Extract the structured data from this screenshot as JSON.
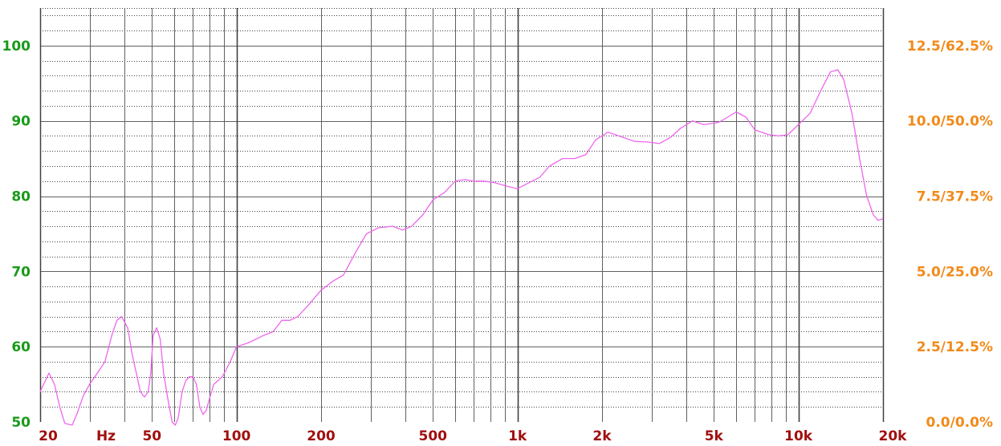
{
  "chart_data": {
    "type": "line",
    "x_scale": "log",
    "xlim": [
      20,
      20000
    ],
    "ylim": [
      50,
      105
    ],
    "grid": true,
    "x_tick_labels": [
      {
        "value": 20,
        "label": "20"
      },
      {
        "value": 50,
        "label": "50"
      },
      {
        "value": 100,
        "label": "100"
      },
      {
        "value": 200,
        "label": "200"
      },
      {
        "value": 500,
        "label": "500"
      },
      {
        "value": 1000,
        "label": "1k"
      },
      {
        "value": 2000,
        "label": "2k"
      },
      {
        "value": 5000,
        "label": "5k"
      },
      {
        "value": 10000,
        "label": "10k"
      },
      {
        "value": 20000,
        "label": "20k"
      }
    ],
    "x_unit_label": "Hz",
    "y_tick_labels_left": [
      {
        "value": 50,
        "label": "50"
      },
      {
        "value": 60,
        "label": "60"
      },
      {
        "value": 70,
        "label": "70"
      },
      {
        "value": 80,
        "label": "80"
      },
      {
        "value": 90,
        "label": "90"
      },
      {
        "value": 100,
        "label": "100"
      }
    ],
    "y_tick_labels_right": [
      {
        "value": 50,
        "label": "0.0/0.0%"
      },
      {
        "value": 60,
        "label": "2.5/12.5%"
      },
      {
        "value": 70,
        "label": "5.0/25.0%"
      },
      {
        "value": 80,
        "label": "7.5/37.5%"
      },
      {
        "value": 90,
        "label": "10.0/50.0%"
      },
      {
        "value": 100,
        "label": "12.5/62.5%"
      }
    ],
    "colors": {
      "line": "#ee66ee",
      "left_axis": "#1a9a1a",
      "right_axis": "#f28a1a",
      "x_axis": "#a01010",
      "grid_major": "#606060",
      "grid_minor": "#404040"
    },
    "series": [
      {
        "points": [
          [
            20,
            54
          ],
          [
            21.5,
            56.5
          ],
          [
            22.5,
            55
          ],
          [
            23.5,
            52
          ],
          [
            24.5,
            49.8
          ],
          [
            26,
            49.5
          ],
          [
            27,
            51
          ],
          [
            28.5,
            53.5
          ],
          [
            30,
            55
          ],
          [
            32,
            56.5
          ],
          [
            34,
            58
          ],
          [
            36,
            61.5
          ],
          [
            37.5,
            63.5
          ],
          [
            39,
            64
          ],
          [
            41,
            62.5
          ],
          [
            42.5,
            59
          ],
          [
            44,
            56.5
          ],
          [
            45.5,
            54
          ],
          [
            47,
            53.3
          ],
          [
            48.5,
            54
          ],
          [
            49.5,
            56.5
          ],
          [
            50.5,
            61.5
          ],
          [
            52,
            62.5
          ],
          [
            53.5,
            61
          ],
          [
            55,
            56.5
          ],
          [
            57,
            53
          ],
          [
            59,
            50
          ],
          [
            60.5,
            49.5
          ],
          [
            62,
            50.5
          ],
          [
            64,
            54
          ],
          [
            66,
            55.5
          ],
          [
            68,
            56
          ],
          [
            70,
            56
          ],
          [
            72,
            55
          ],
          [
            74,
            52
          ],
          [
            76,
            51
          ],
          [
            78,
            51.5
          ],
          [
            80,
            53
          ],
          [
            83,
            55
          ],
          [
            86,
            55.5
          ],
          [
            89,
            56
          ],
          [
            92,
            57
          ],
          [
            95,
            58
          ],
          [
            100,
            60
          ],
          [
            110,
            60.5
          ],
          [
            125,
            61.5
          ],
          [
            135,
            62
          ],
          [
            145,
            63.5
          ],
          [
            155,
            63.5
          ],
          [
            165,
            64
          ],
          [
            180,
            65.5
          ],
          [
            200,
            67.5
          ],
          [
            220,
            68.7
          ],
          [
            240,
            69.5
          ],
          [
            265,
            72.5
          ],
          [
            290,
            75
          ],
          [
            320,
            75.8
          ],
          [
            360,
            76
          ],
          [
            390,
            75.5
          ],
          [
            420,
            76
          ],
          [
            460,
            77.5
          ],
          [
            500,
            79.5
          ],
          [
            550,
            80.5
          ],
          [
            600,
            82
          ],
          [
            650,
            82.2
          ],
          [
            700,
            82
          ],
          [
            760,
            82
          ],
          [
            830,
            81.8
          ],
          [
            920,
            81.3
          ],
          [
            1000,
            81
          ],
          [
            1100,
            81.8
          ],
          [
            1200,
            82.5
          ],
          [
            1300,
            84
          ],
          [
            1450,
            85
          ],
          [
            1600,
            85
          ],
          [
            1750,
            85.5
          ],
          [
            1900,
            87.5
          ],
          [
            2100,
            88.5
          ],
          [
            2300,
            88
          ],
          [
            2600,
            87.3
          ],
          [
            2900,
            87.2
          ],
          [
            3200,
            87
          ],
          [
            3500,
            87.8
          ],
          [
            3800,
            89
          ],
          [
            4200,
            90
          ],
          [
            4600,
            89.5
          ],
          [
            5200,
            89.8
          ],
          [
            5600,
            90.5
          ],
          [
            6000,
            91.2
          ],
          [
            6500,
            90.5
          ],
          [
            7000,
            88.8
          ],
          [
            7800,
            88.2
          ],
          [
            8500,
            88
          ],
          [
            9200,
            88.2
          ],
          [
            10000,
            89.5
          ],
          [
            11000,
            91
          ],
          [
            12000,
            94
          ],
          [
            13000,
            96.5
          ],
          [
            13800,
            96.8
          ],
          [
            14500,
            95.5
          ],
          [
            15500,
            91
          ],
          [
            16500,
            85
          ],
          [
            17500,
            80
          ],
          [
            18500,
            77.5
          ],
          [
            19200,
            76.8
          ],
          [
            20000,
            77
          ]
        ]
      }
    ]
  }
}
